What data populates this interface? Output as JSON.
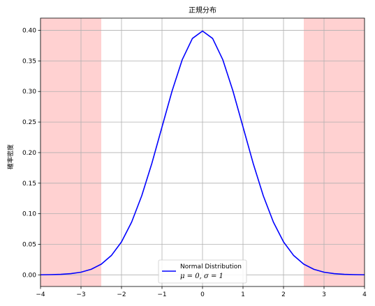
{
  "chart_data": {
    "type": "line",
    "title": "正規分布",
    "xlabel": "",
    "ylabel": "確率密度",
    "xlim": [
      -4,
      4
    ],
    "ylim": [
      -0.019,
      0.42
    ],
    "xticks": [
      -4,
      -3,
      -2,
      -1,
      0,
      1,
      2,
      3,
      4
    ],
    "xtick_labels": [
      "−4",
      "−3",
      "−2",
      "−1",
      "0",
      "1",
      "2",
      "3",
      "4"
    ],
    "yticks": [
      0.0,
      0.05,
      0.1,
      0.15,
      0.2,
      0.25,
      0.3,
      0.35,
      0.4
    ],
    "ytick_labels": [
      "0.00",
      "0.05",
      "0.10",
      "0.15",
      "0.20",
      "0.25",
      "0.30",
      "0.35",
      "0.40"
    ],
    "grid": true,
    "legend_position": "lower-center",
    "series": [
      {
        "name": "Normal Distribution",
        "name_line2": "μ = 0, σ = 1",
        "color": "#0000ff",
        "x": [
          -4,
          -3.75,
          -3.5,
          -3.25,
          -3,
          -2.75,
          -2.5,
          -2.25,
          -2,
          -1.75,
          -1.5,
          -1.25,
          -1,
          -0.75,
          -0.5,
          -0.25,
          0,
          0.25,
          0.5,
          0.75,
          1,
          1.25,
          1.5,
          1.75,
          2,
          2.25,
          2.5,
          2.75,
          3,
          3.25,
          3.5,
          3.75,
          4
        ],
        "y": [
          0.0001,
          0.0004,
          0.0009,
          0.002,
          0.0044,
          0.0091,
          0.0175,
          0.0317,
          0.054,
          0.0863,
          0.1295,
          0.1826,
          0.242,
          0.3011,
          0.3521,
          0.3867,
          0.3989,
          0.3867,
          0.3521,
          0.3011,
          0.242,
          0.1826,
          0.1295,
          0.0863,
          0.054,
          0.0317,
          0.0175,
          0.0091,
          0.0044,
          0.002,
          0.0009,
          0.0004,
          0.0001
        ]
      }
    ],
    "shaded_regions": [
      {
        "x_from": -4,
        "x_to": -2.5,
        "color": "#ff9999"
      },
      {
        "x_from": 2.5,
        "x_to": 4,
        "color": "#ff9999"
      }
    ]
  }
}
